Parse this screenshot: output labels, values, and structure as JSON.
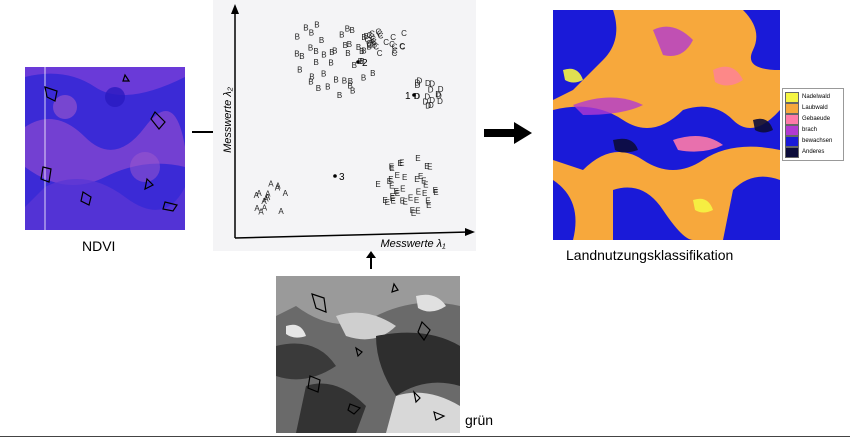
{
  "captions": {
    "ndvi": "NDVI",
    "gruen": "grün",
    "classification": "Landnutzungsklassifikation"
  },
  "feature_space": {
    "y_axis_label": "Messwerte λ₂",
    "x_axis_label": "Messwerte λ₁",
    "cluster_letters": [
      "A",
      "B",
      "C",
      "D",
      "E"
    ],
    "centroid_labels": [
      "1",
      "2",
      "3"
    ]
  },
  "legend": {
    "items": [
      {
        "label": "Nadelwald",
        "color": "#f5f542"
      },
      {
        "label": "Laubwald",
        "color": "#f7a83c"
      },
      {
        "label": "Gebaeude",
        "color": "#ff7aa8"
      },
      {
        "label": "brach",
        "color": "#b23ad1"
      },
      {
        "label": "bewachsen",
        "color": "#1a1ad8"
      },
      {
        "label": "Anderes",
        "color": "#0c0c3a"
      }
    ]
  },
  "colors": {
    "ndvi_base": "#3b2ad6",
    "classification_base": "#f7a83c",
    "arrow": "#000000"
  }
}
